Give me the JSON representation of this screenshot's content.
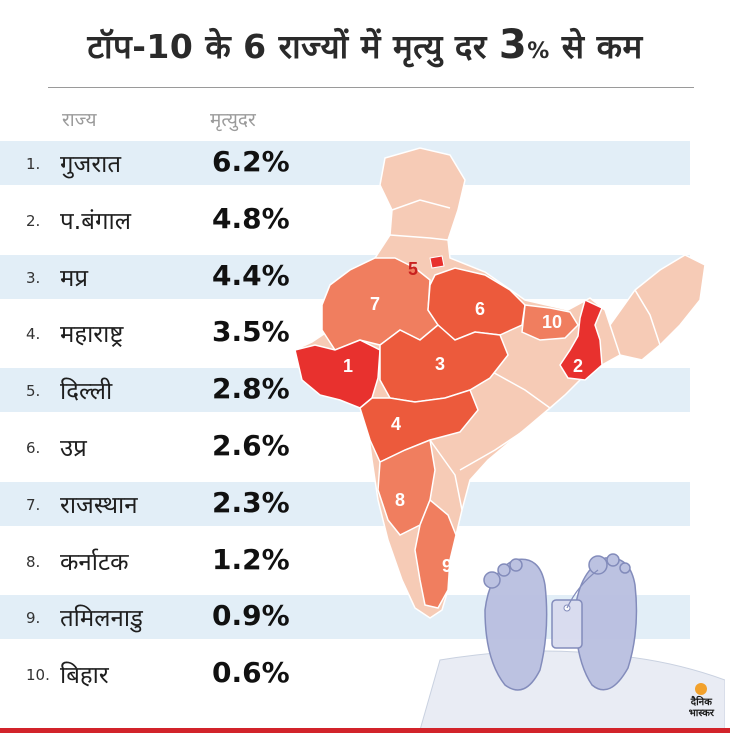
{
  "title": {
    "main": "टॉप-10 के 6 राज्यों में मृत्यु दर",
    "pct_num": "3",
    "pct_sign": "%",
    "tail": "से कम"
  },
  "column_headers": {
    "state": "राज्य",
    "rate": "मृत्युदर"
  },
  "chart_data": {
    "type": "table",
    "columns": [
      "राज्य",
      "मृत्युदर"
    ],
    "rows": [
      {
        "rank": "1.",
        "state": "गुजरात",
        "rate": "6.2%",
        "value": 6.2
      },
      {
        "rank": "2.",
        "state": "प.बंगाल",
        "rate": "4.8%",
        "value": 4.8
      },
      {
        "rank": "3.",
        "state": "मप्र",
        "rate": "4.4%",
        "value": 4.4
      },
      {
        "rank": "4.",
        "state": "महाराष्ट्र",
        "rate": "3.5%",
        "value": 3.5
      },
      {
        "rank": "5.",
        "state": "दिल्ली",
        "rate": "2.8%",
        "value": 2.8
      },
      {
        "rank": "6.",
        "state": "उप्र",
        "rate": "2.6%",
        "value": 2.6
      },
      {
        "rank": "7.",
        "state": "राजस्थान",
        "rate": "2.3%",
        "value": 2.3
      },
      {
        "rank": "8.",
        "state": "कर्नाटक",
        "rate": "1.2%",
        "value": 1.2
      },
      {
        "rank": "9.",
        "state": "तमिलनाडु",
        "rate": "0.9%",
        "value": 0.9
      },
      {
        "rank": "10.",
        "state": "बिहार",
        "rate": "0.6%",
        "value": 0.6
      }
    ]
  },
  "map_labels": [
    {
      "text": "1",
      "state": "गुजरात"
    },
    {
      "text": "2",
      "state": "प.बंगाल"
    },
    {
      "text": "3",
      "state": "मप्र"
    },
    {
      "text": "4",
      "state": "महाराष्ट्र"
    },
    {
      "text": "5",
      "state": "दिल्ली"
    },
    {
      "text": "6",
      "state": "उप्र"
    },
    {
      "text": "7",
      "state": "राजस्थान"
    },
    {
      "text": "8",
      "state": "कर्नाटक"
    },
    {
      "text": "9",
      "state": "तमिलनाडु"
    },
    {
      "text": "10",
      "state": "बिहार"
    }
  ],
  "colors": {
    "high": "#e8312e",
    "mid": "#ec5a3c",
    "low": "#f07e5f",
    "other_state": "#f6cbb6",
    "stripe": "#e2eef7",
    "accent_bar": "#d2232a"
  },
  "logo": {
    "line1": "दैनिक",
    "line2": "भास्कर"
  }
}
